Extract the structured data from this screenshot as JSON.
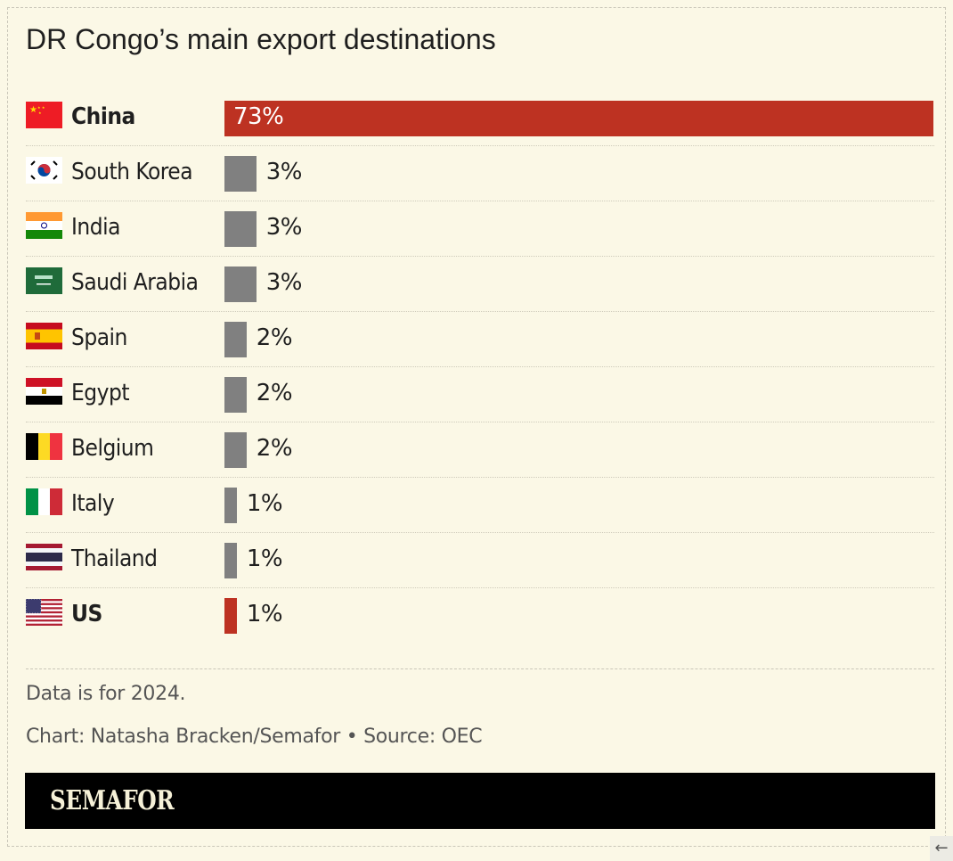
{
  "title": "DR Congo’s main export destinations",
  "chart_data": {
    "type": "bar",
    "orientation": "horizontal",
    "title": "DR Congo’s main export destinations",
    "categories": [
      "China",
      "South Korea",
      "India",
      "Saudi Arabia",
      "Spain",
      "Egypt",
      "Belgium",
      "Italy",
      "Thailand",
      "US"
    ],
    "values": [
      73,
      3,
      3,
      3,
      2,
      2,
      2,
      1,
      1,
      1
    ],
    "value_labels": [
      "73%",
      "3%",
      "3%",
      "3%",
      "2%",
      "2%",
      "2%",
      "1%",
      "1%",
      "1%"
    ],
    "highlighted": [
      "China",
      "US"
    ],
    "flags": [
      "cn",
      "kr",
      "in",
      "sa",
      "es",
      "eg",
      "be",
      "it",
      "th",
      "us"
    ],
    "colors": {
      "highlight": "#bd3222",
      "default": "#808080"
    },
    "xlim": [
      0,
      73
    ]
  },
  "notes": {
    "data_year": "Data is for 2024.",
    "credit": "Chart: Natasha Bracken/Semafor • Source: OEC"
  },
  "banner": {
    "logo": "SEMAFOR"
  },
  "corner_icon": "arrow-left-icon"
}
